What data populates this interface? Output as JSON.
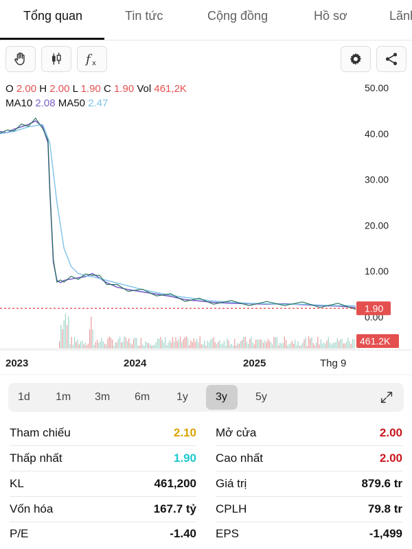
{
  "tabs": [
    {
      "label": "Tổng quan",
      "active": true
    },
    {
      "label": "Tin tức"
    },
    {
      "label": "Cộng đồng"
    },
    {
      "label": "Hồ sơ"
    },
    {
      "label": "Lãnh"
    }
  ],
  "toolbar": {
    "left_icons": [
      "hand-icon",
      "candlestick-icon",
      "function-icon"
    ],
    "right_icons": [
      "gear-icon",
      "share-icon"
    ]
  },
  "ohlc": {
    "o_label": "O",
    "o": "2.00",
    "h_label": "H",
    "h": "2.00",
    "l_label": "L",
    "l": "1.90",
    "c_label": "C",
    "c": "1.90",
    "vol_label": "Vol",
    "vol": "461,2K"
  },
  "ma": {
    "ma10_label": "MA10",
    "ma10": "2.08",
    "ma50_label": "MA50",
    "ma50": "2.47"
  },
  "colors": {
    "up": "#e4504f",
    "ma10": "#7a5ec8",
    "ma50": "#7cc2e8",
    "yellow": "#d9a300",
    "cyan": "#1cc7cf",
    "red": "#c8161d",
    "price_line": "#e4504f",
    "volume": "#e79b9b"
  },
  "chart_data": {
    "type": "line",
    "title": "",
    "y_ticks": [
      "50.00",
      "40.00",
      "30.00",
      "20.00",
      "10.00",
      "0.00"
    ],
    "ylim": [
      0,
      50
    ],
    "x_ticks": [
      "2023",
      "2024",
      "2025",
      "Thg 9"
    ],
    "current_price_label": "1.90",
    "current_volume_label": "461.2K",
    "series": [
      {
        "name": "MA10",
        "x": [
          0,
          0.02,
          0.04,
          0.06,
          0.08,
          0.1,
          0.12,
          0.135,
          0.14,
          0.15,
          0.16,
          0.17,
          0.18,
          0.2,
          0.22,
          0.24,
          0.26,
          0.28,
          0.3,
          0.33,
          0.36,
          0.4,
          0.44,
          0.48,
          0.52,
          0.56,
          0.6,
          0.65,
          0.7,
          0.75,
          0.8,
          0.85,
          0.9,
          0.95,
          1.0
        ],
        "values": [
          40.5,
          40.2,
          41.0,
          41.5,
          42.0,
          42.8,
          41.5,
          38.0,
          28.0,
          12.0,
          8.0,
          7.5,
          8.0,
          8.3,
          8.6,
          8.8,
          9.5,
          8.5,
          7.5,
          6.5,
          6.0,
          5.5,
          5.0,
          4.5,
          3.8,
          3.5,
          3.2,
          3.0,
          2.9,
          2.8,
          2.9,
          2.7,
          2.5,
          2.4,
          2.08
        ]
      },
      {
        "name": "MA50",
        "x": [
          0,
          0.04,
          0.08,
          0.12,
          0.14,
          0.16,
          0.18,
          0.2,
          0.22,
          0.24,
          0.26,
          0.3,
          0.35,
          0.4,
          0.45,
          0.5,
          0.55,
          0.6,
          0.65,
          0.7,
          0.75,
          0.8,
          0.85,
          0.9,
          0.95,
          1.0
        ],
        "values": [
          40.0,
          40.5,
          41.5,
          42.0,
          38.0,
          25.0,
          15.0,
          11.0,
          9.5,
          9.0,
          8.8,
          8.0,
          7.0,
          6.0,
          5.2,
          4.5,
          4.0,
          3.5,
          3.2,
          3.0,
          2.9,
          2.8,
          2.8,
          2.6,
          2.5,
          2.47
        ]
      }
    ]
  },
  "ranges": [
    "1d",
    "1m",
    "3m",
    "6m",
    "1y",
    "3y",
    "5y"
  ],
  "active_range": "3y",
  "stats": {
    "left": [
      {
        "label": "Tham chiếu",
        "value": "2.10",
        "color": "#d9a300"
      },
      {
        "label": "Thấp nhất",
        "value": "1.90",
        "color": "#1cc7cf"
      },
      {
        "label": "KL",
        "value": "461,200",
        "color": "#111111"
      },
      {
        "label": "Vốn hóa",
        "value": "167.7 tỷ",
        "color": "#111111"
      },
      {
        "label": "P/E",
        "value": "-1.40",
        "color": "#111111"
      }
    ],
    "right": [
      {
        "label": "Mở cửa",
        "value": "2.00",
        "color": "#c8161d"
      },
      {
        "label": "Cao nhất",
        "value": "2.00",
        "color": "#c8161d"
      },
      {
        "label": "Giá trị",
        "value": "879.6 tr",
        "color": "#111111"
      },
      {
        "label": "CPLH",
        "value": "79.8 tr",
        "color": "#111111"
      },
      {
        "label": "EPS",
        "value": "-1,499",
        "color": "#111111"
      }
    ]
  }
}
